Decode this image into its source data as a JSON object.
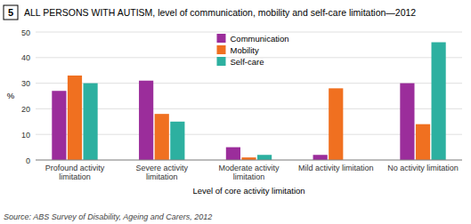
{
  "chart_data": {
    "type": "bar",
    "title": "ALL PERSONS WITH AUTISM, level of communication, mobility and self-care limitation—2012",
    "graph_number": "5",
    "source": "Source: ABS Survey of Disability, Ageing and Carers, 2012",
    "categories": [
      "Profound activity\nlimitation",
      "Severe activity\nlimitation",
      "Moderate activity\nlimitation",
      "Mild activity limitation",
      "No activity limitation"
    ],
    "series": [
      {
        "name": "Communication",
        "color": "#9b2d9b",
        "values": [
          27,
          31,
          5,
          2,
          30
        ]
      },
      {
        "name": "Mobility",
        "color": "#f07020",
        "values": [
          33,
          18,
          1,
          28,
          14
        ]
      },
      {
        "name": "Self-care",
        "color": "#2db0a0",
        "values": [
          30,
          15,
          2,
          0,
          46
        ]
      }
    ],
    "xlabel": "Level of core activity limitation",
    "ylabel": "%",
    "ylim": [
      0,
      50
    ],
    "yticks": [
      0,
      10,
      20,
      30,
      40,
      50
    ],
    "grid": true,
    "legend": "top"
  }
}
